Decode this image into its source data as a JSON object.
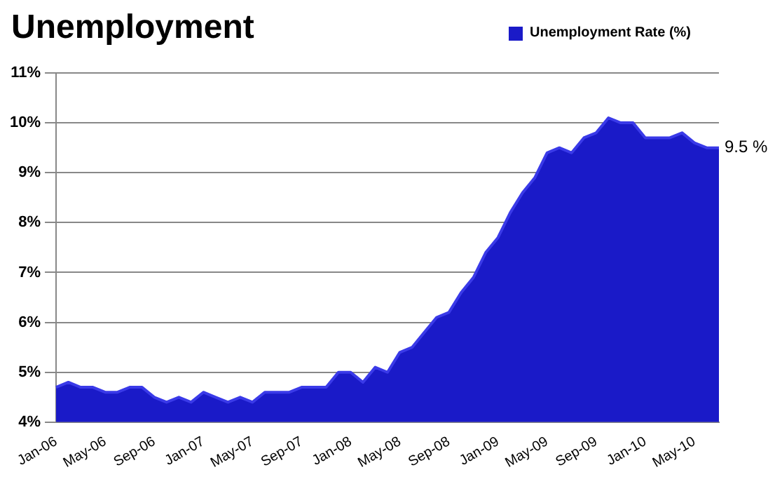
{
  "chart_data": {
    "type": "area",
    "title": "Unemployment",
    "categories": [
      "Jan-06",
      null,
      null,
      null,
      "May-06",
      null,
      null,
      null,
      "Sep-06",
      null,
      null,
      null,
      "Jan-07",
      null,
      null,
      null,
      "May-07",
      null,
      null,
      null,
      "Sep-07",
      null,
      null,
      null,
      "Jan-08",
      null,
      null,
      null,
      "May-08",
      null,
      null,
      null,
      "Sep-08",
      null,
      null,
      null,
      "Jan-09",
      null,
      null,
      null,
      "May-09",
      null,
      null,
      null,
      "Sep-09",
      null,
      null,
      null,
      "Jan-10",
      null,
      null,
      null,
      "May-10",
      null,
      null
    ],
    "series": [
      {
        "name": "Unemployment Rate (%)",
        "color": "#1a1ac8",
        "values": [
          4.7,
          4.8,
          4.7,
          4.7,
          4.6,
          4.6,
          4.7,
          4.7,
          4.5,
          4.4,
          4.5,
          4.4,
          4.6,
          4.5,
          4.4,
          4.5,
          4.4,
          4.6,
          4.6,
          4.6,
          4.7,
          4.7,
          4.7,
          5.0,
          5.0,
          4.8,
          5.1,
          5.0,
          5.4,
          5.5,
          5.8,
          6.1,
          6.2,
          6.6,
          6.9,
          7.4,
          7.7,
          8.2,
          8.6,
          8.9,
          9.4,
          9.5,
          9.4,
          9.7,
          9.8,
          10.1,
          10.0,
          10.0,
          9.7,
          9.7,
          9.7,
          9.8,
          9.6,
          9.5,
          9.5
        ]
      }
    ],
    "ylim": [
      4,
      11
    ],
    "yticks": [
      {
        "value": 4,
        "label": "4%"
      },
      {
        "value": 5,
        "label": "5%"
      },
      {
        "value": 6,
        "label": "6%"
      },
      {
        "value": 7,
        "label": "7%"
      },
      {
        "value": 8,
        "label": "8%"
      },
      {
        "value": 9,
        "label": "9%"
      },
      {
        "value": 10,
        "label": "10%"
      },
      {
        "value": 11,
        "label": "11%"
      }
    ],
    "grid": "y",
    "legend": "top right",
    "marker": "none",
    "annotations": [
      "9.5 %"
    ]
  }
}
